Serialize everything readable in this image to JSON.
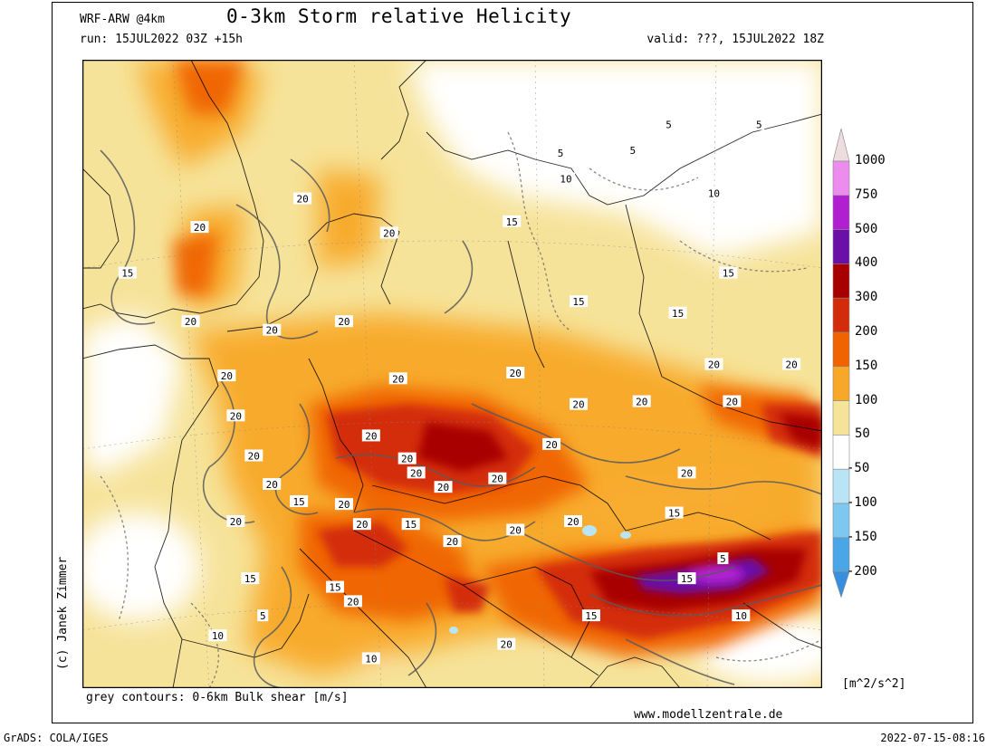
{
  "header": {
    "model": "WRF-ARW @4km",
    "title": "0-3km Storm relative Helicity",
    "run": "run: 15JUL2022 03Z +15h",
    "valid": "valid: ???, 15JUL2022 18Z"
  },
  "footer": {
    "contours_note": "grey contours: 0-6km Bulk shear [m/s]",
    "website": "www.modellzentrale.de",
    "grads": "GrADS: COLA/IGES",
    "timestamp": "2022-07-15-08:16",
    "copyright": "(c) Janek Zimmer"
  },
  "colorbar": {
    "unit": "[m^2/s^2]",
    "levels": [
      "1000",
      "750",
      "500",
      "400",
      "300",
      "200",
      "150",
      "100",
      "50",
      "-50",
      "-100",
      "-150",
      "-200"
    ],
    "colors": [
      "#eedde0",
      "#ec8cec",
      "#b020d0",
      "#6a10a8",
      "#a80000",
      "#d22c0a",
      "#f06400",
      "#f8a828",
      "#f6e39a",
      "#ffffff",
      "#b8e4f6",
      "#7cc8f0",
      "#4aa6e6",
      "#3a8ee0"
    ]
  },
  "contour_labels": [
    {
      "text": "20",
      "lon": -2.5,
      "lat": 54.6
    },
    {
      "text": "15",
      "lon": -6.5,
      "lat": 53.0
    },
    {
      "text": "20",
      "lon": -3.0,
      "lat": 51.3
    },
    {
      "text": "20",
      "lon": 3.2,
      "lat": 55.6
    },
    {
      "text": "20",
      "lon": 8.0,
      "lat": 54.4
    },
    {
      "text": "20",
      "lon": 1.5,
      "lat": 51.0
    },
    {
      "text": "20",
      "lon": 5.5,
      "lat": 51.3
    },
    {
      "text": "15",
      "lon": 14.8,
      "lat": 54.8
    },
    {
      "text": "15",
      "lon": 18.5,
      "lat": 52.0
    },
    {
      "text": "15",
      "lon": 24.0,
      "lat": 51.6
    },
    {
      "text": "15",
      "lon": 26.8,
      "lat": 53.0
    },
    {
      "text": "5",
      "lon": 17.5,
      "lat": 57.2
    },
    {
      "text": "5",
      "lon": 21.5,
      "lat": 57.3
    },
    {
      "text": "10",
      "lon": 17.8,
      "lat": 56.3
    },
    {
      "text": "5",
      "lon": 23.5,
      "lat": 58.2
    },
    {
      "text": "5",
      "lon": 28.5,
      "lat": 58.2
    },
    {
      "text": "10",
      "lon": 26.0,
      "lat": 55.8
    },
    {
      "text": "20",
      "lon": -1.0,
      "lat": 49.4
    },
    {
      "text": "20",
      "lon": -0.5,
      "lat": 48.0
    },
    {
      "text": "20",
      "lon": 0.5,
      "lat": 46.6
    },
    {
      "text": "20",
      "lon": 1.5,
      "lat": 45.6
    },
    {
      "text": "15",
      "lon": 3.0,
      "lat": 45.0
    },
    {
      "text": "20",
      "lon": -0.5,
      "lat": 44.3
    },
    {
      "text": "20",
      "lon": 8.5,
      "lat": 49.3
    },
    {
      "text": "20",
      "lon": 15.0,
      "lat": 49.5
    },
    {
      "text": "20",
      "lon": 18.5,
      "lat": 48.4
    },
    {
      "text": "20",
      "lon": 22.0,
      "lat": 48.5
    },
    {
      "text": "20",
      "lon": 27.0,
      "lat": 48.5
    },
    {
      "text": "20",
      "lon": 7.0,
      "lat": 47.3
    },
    {
      "text": "20",
      "lon": 17.0,
      "lat": 47.0
    },
    {
      "text": "20",
      "lon": 9.0,
      "lat": 46.5
    },
    {
      "text": "20",
      "lon": 9.5,
      "lat": 46.0
    },
    {
      "text": "20",
      "lon": 14.0,
      "lat": 45.8
    },
    {
      "text": "20",
      "lon": 24.5,
      "lat": 46.0
    },
    {
      "text": "20",
      "lon": 11.0,
      "lat": 45.5
    },
    {
      "text": "20",
      "lon": 5.5,
      "lat": 44.9
    },
    {
      "text": "20",
      "lon": 6.5,
      "lat": 44.2
    },
    {
      "text": "15",
      "lon": 9.2,
      "lat": 44.2
    },
    {
      "text": "20",
      "lon": 15.0,
      "lat": 44.0
    },
    {
      "text": "20",
      "lon": 18.2,
      "lat": 44.3
    },
    {
      "text": "15",
      "lon": 23.8,
      "lat": 44.6
    },
    {
      "text": "20",
      "lon": 30.3,
      "lat": 49.8
    },
    {
      "text": "20",
      "lon": 26.0,
      "lat": 49.8
    },
    {
      "text": "20",
      "lon": 11.5,
      "lat": 43.6
    },
    {
      "text": "15",
      "lon": 0.3,
      "lat": 42.3
    },
    {
      "text": "15",
      "lon": 5.0,
      "lat": 42.0
    },
    {
      "text": "5",
      "lon": 1.0,
      "lat": 41.0
    },
    {
      "text": "10",
      "lon": -1.5,
      "lat": 40.3
    },
    {
      "text": "20",
      "lon": 6.0,
      "lat": 41.5
    },
    {
      "text": "10",
      "lon": 7.0,
      "lat": 39.5
    },
    {
      "text": "15",
      "lon": 19.2,
      "lat": 41.0
    },
    {
      "text": "15",
      "lon": 24.5,
      "lat": 42.3
    },
    {
      "text": "10",
      "lon": 27.5,
      "lat": 41.0
    },
    {
      "text": "20",
      "lon": 14.5,
      "lat": 40.0
    },
    {
      "text": "5",
      "lon": 26.5,
      "lat": 43.0
    }
  ]
}
